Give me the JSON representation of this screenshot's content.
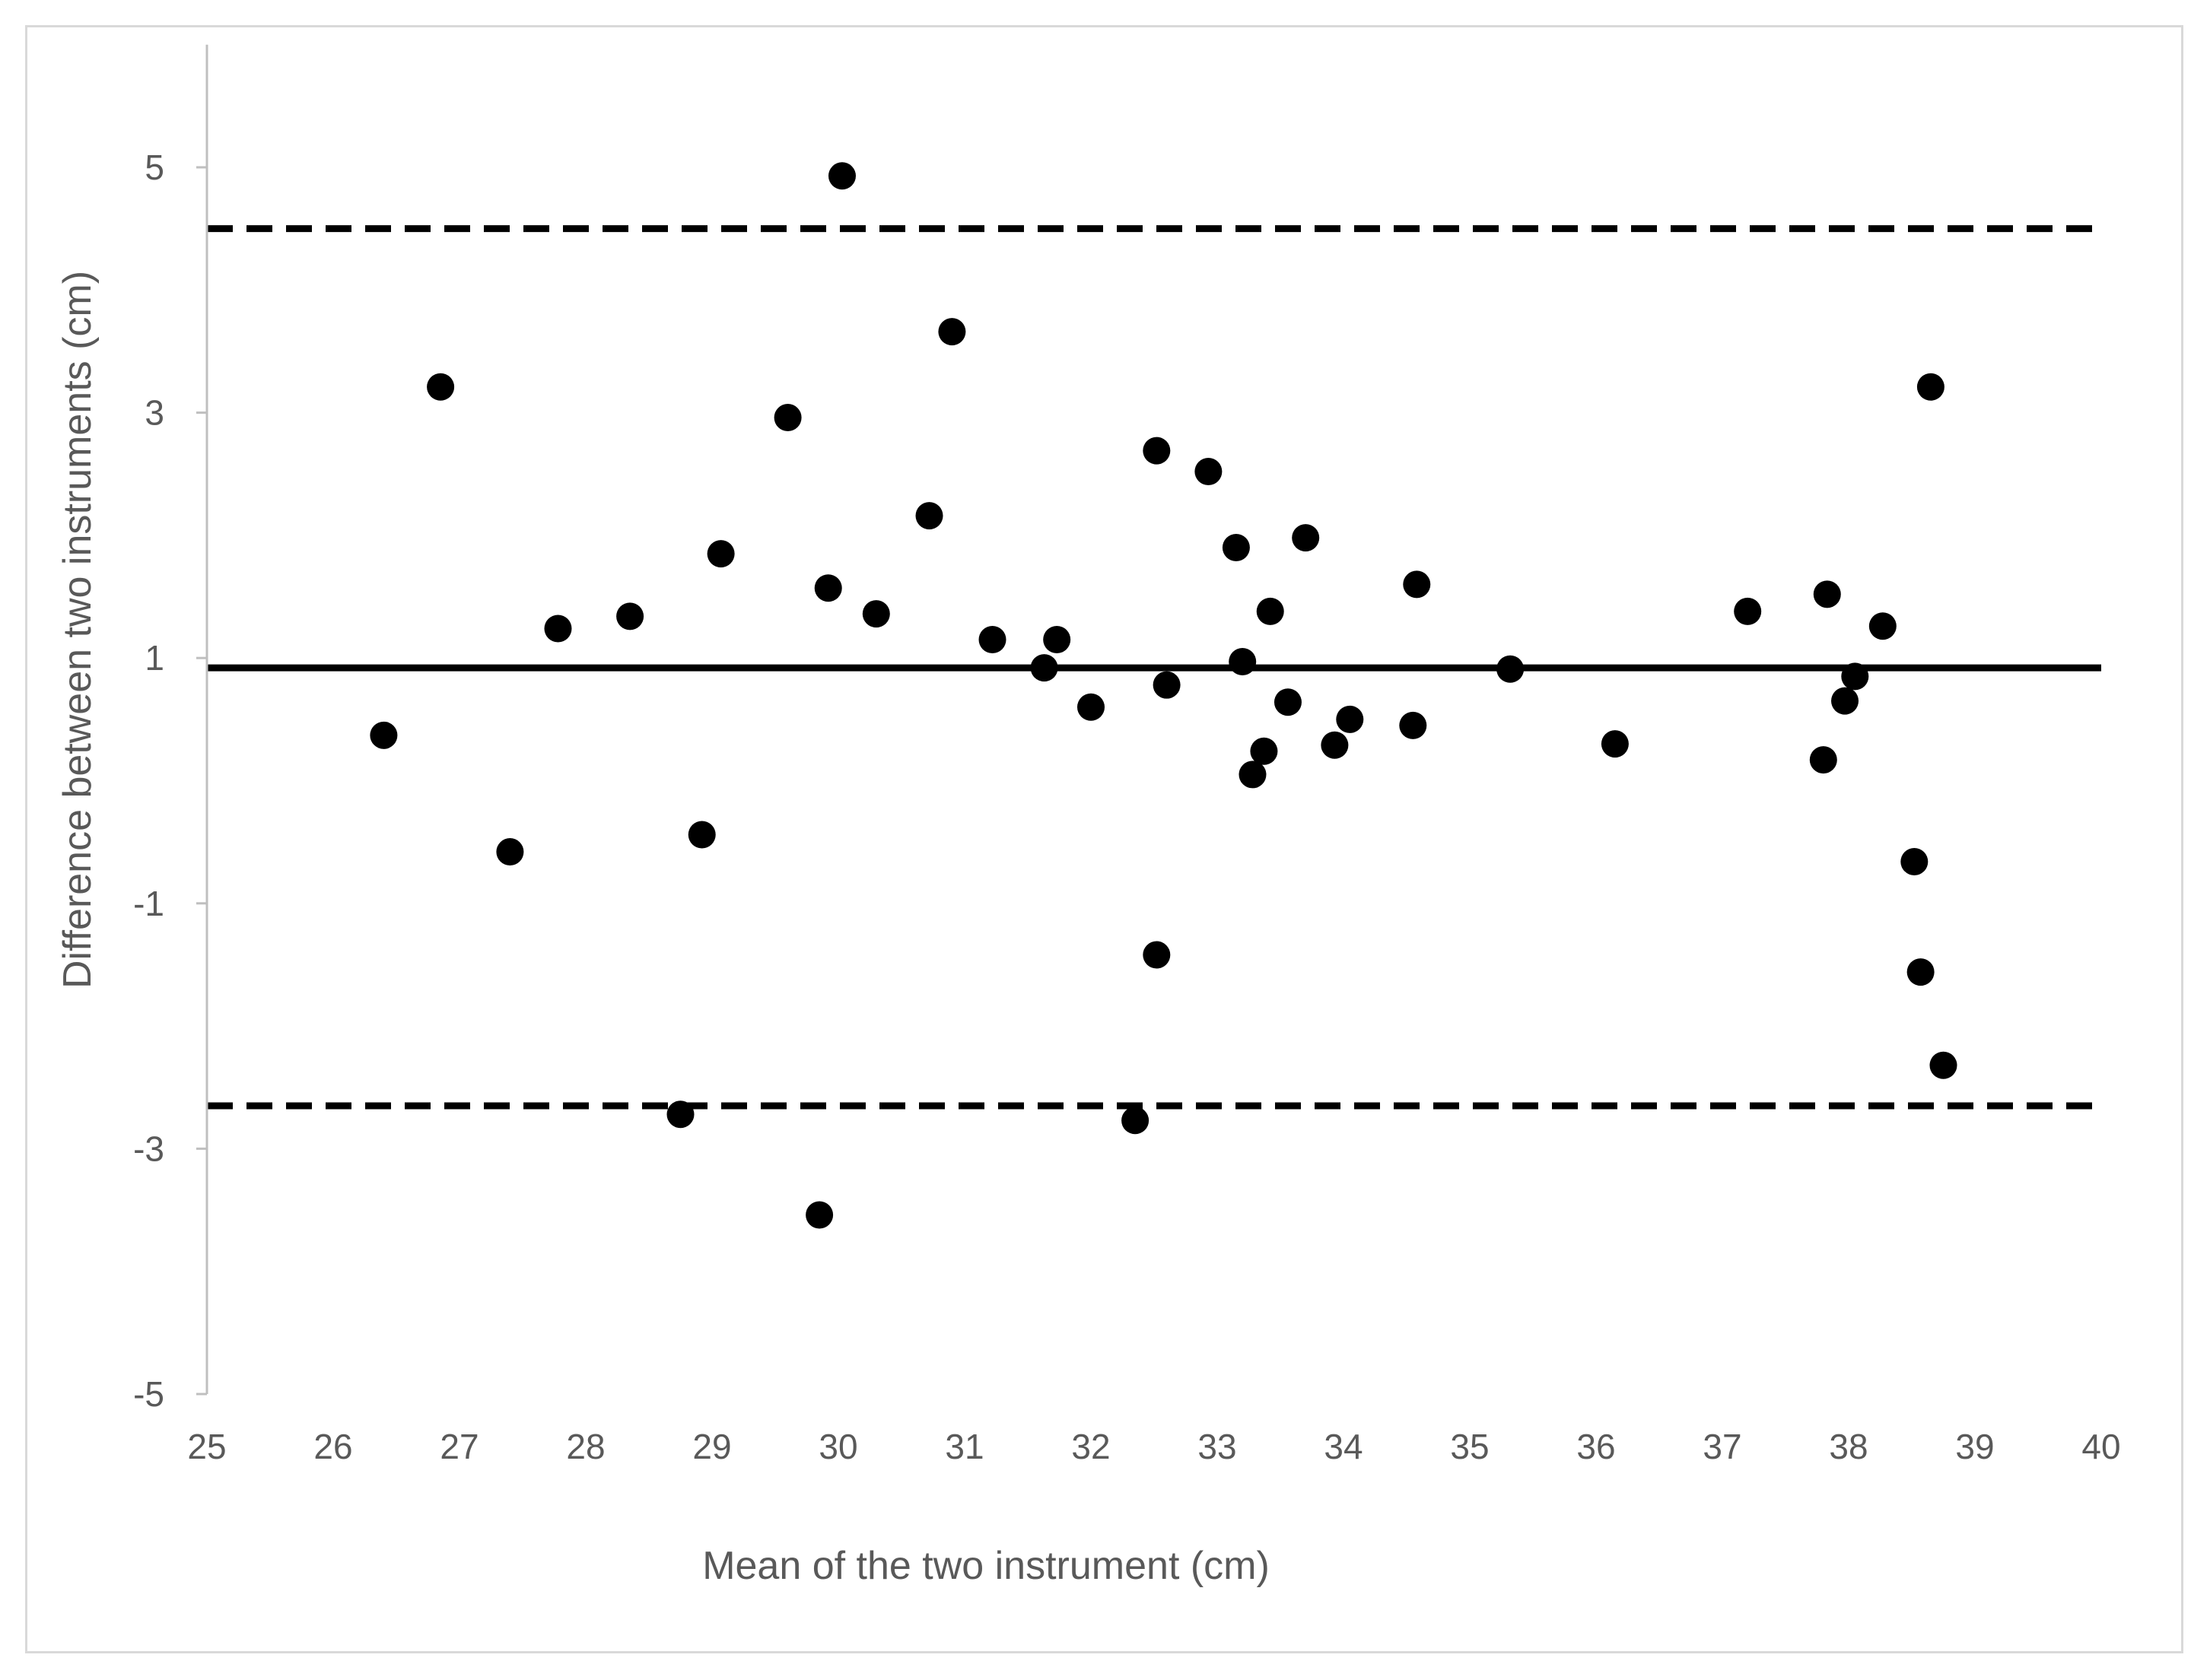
{
  "chart_data": {
    "type": "scatter",
    "title": "",
    "xlabel": "Mean of the two instrument (cm)",
    "ylabel": "Difference between two instruments (cm)",
    "xlim": [
      25,
      40
    ],
    "ylim": [
      -5,
      6
    ],
    "x_ticks": [
      "25",
      "26",
      "27",
      "28",
      "29",
      "30",
      "31",
      "32",
      "33",
      "34",
      "35",
      "36",
      "37",
      "38",
      "39",
      "40"
    ],
    "y_ticks": [
      "-5",
      "-3",
      "-1",
      "1",
      "3",
      "5"
    ],
    "grid": false,
    "legend": "none",
    "colors": {
      "points": "#000000",
      "axis": "#bfbfbf",
      "text": "#595959"
    },
    "mean_difference": 0.92,
    "upper_limit_of_agreement": 4.5,
    "lower_limit_of_agreement": -2.65,
    "points": [
      {
        "x": 26.4,
        "y": 0.37
      },
      {
        "x": 26.85,
        "y": 3.21
      },
      {
        "x": 27.4,
        "y": -0.58
      },
      {
        "x": 27.78,
        "y": 1.24
      },
      {
        "x": 28.35,
        "y": 1.34
      },
      {
        "x": 28.75,
        "y": -2.72
      },
      {
        "x": 28.92,
        "y": -0.44
      },
      {
        "x": 29.07,
        "y": 1.85
      },
      {
        "x": 29.6,
        "y": 2.96
      },
      {
        "x": 29.85,
        "y": -3.54
      },
      {
        "x": 29.92,
        "y": 1.57
      },
      {
        "x": 30.03,
        "y": 4.93
      },
      {
        "x": 30.3,
        "y": 1.36
      },
      {
        "x": 30.72,
        "y": 2.16
      },
      {
        "x": 30.9,
        "y": 3.66
      },
      {
        "x": 31.22,
        "y": 1.15
      },
      {
        "x": 31.63,
        "y": 0.92
      },
      {
        "x": 31.73,
        "y": 1.15
      },
      {
        "x": 32.0,
        "y": 0.6
      },
      {
        "x": 32.35,
        "y": -2.77
      },
      {
        "x": 32.52,
        "y": 2.69
      },
      {
        "x": 32.52,
        "y": -1.42
      },
      {
        "x": 32.6,
        "y": 0.78
      },
      {
        "x": 32.93,
        "y": 2.52
      },
      {
        "x": 33.15,
        "y": 1.9
      },
      {
        "x": 33.2,
        "y": 0.97
      },
      {
        "x": 33.28,
        "y": 0.05
      },
      {
        "x": 33.37,
        "y": 0.24
      },
      {
        "x": 33.42,
        "y": 1.38
      },
      {
        "x": 33.56,
        "y": 0.64
      },
      {
        "x": 33.7,
        "y": 1.98
      },
      {
        "x": 33.93,
        "y": 0.29
      },
      {
        "x": 34.05,
        "y": 0.5
      },
      {
        "x": 34.55,
        "y": 0.45
      },
      {
        "x": 34.58,
        "y": 1.6
      },
      {
        "x": 35.32,
        "y": 0.91
      },
      {
        "x": 36.15,
        "y": 0.3
      },
      {
        "x": 37.2,
        "y": 1.38
      },
      {
        "x": 37.8,
        "y": 0.17
      },
      {
        "x": 37.83,
        "y": 1.52
      },
      {
        "x": 37.97,
        "y": 0.65
      },
      {
        "x": 38.05,
        "y": 0.85
      },
      {
        "x": 38.27,
        "y": 1.26
      },
      {
        "x": 38.52,
        "y": -0.66
      },
      {
        "x": 38.57,
        "y": -1.56
      },
      {
        "x": 38.65,
        "y": 3.21
      },
      {
        "x": 38.75,
        "y": -2.32
      }
    ]
  }
}
